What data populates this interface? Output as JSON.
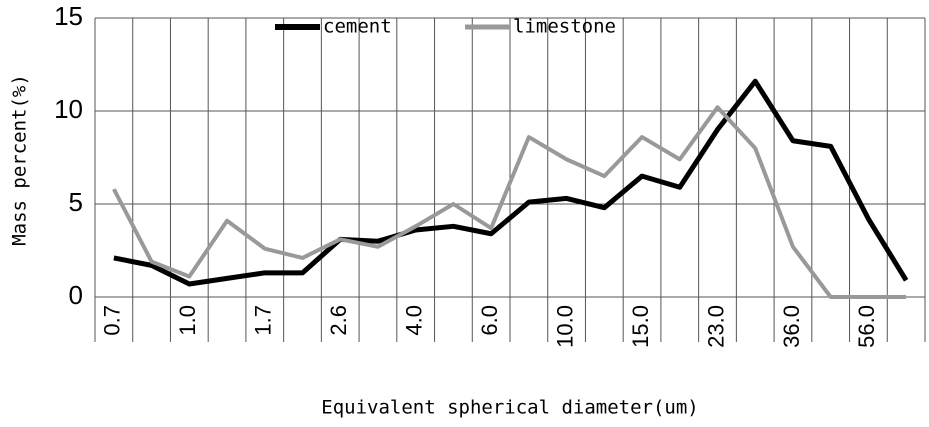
{
  "chart_data": {
    "type": "line",
    "x_label": "Equivalent spherical diameter(um)",
    "y_label": "Mass percent(%)",
    "categories": [
      "0.7",
      null,
      "1.0",
      null,
      "1.7",
      null,
      "2.6",
      null,
      "4.0",
      null,
      "6.0",
      null,
      "10.0",
      null,
      "15.0",
      null,
      "23.0",
      null,
      "36.0",
      null,
      "56.0",
      null
    ],
    "series": [
      {
        "name": "cement",
        "color": "#000000",
        "values": [
          2.1,
          1.7,
          0.7,
          1.0,
          1.3,
          1.3,
          3.1,
          3.0,
          3.6,
          3.8,
          3.4,
          5.1,
          5.3,
          4.8,
          6.5,
          5.9,
          9.0,
          11.6,
          8.4,
          8.1,
          4.2,
          0.9
        ]
      },
      {
        "name": "limestone",
        "color": "#999999",
        "values": [
          5.8,
          1.9,
          1.1,
          4.1,
          2.6,
          2.1,
          3.1,
          2.7,
          3.8,
          5.0,
          3.7,
          8.6,
          7.4,
          6.5,
          8.6,
          7.4,
          10.2,
          8.0,
          2.7,
          0,
          0,
          0
        ]
      }
    ],
    "ylim": [
      0,
      15
    ],
    "yticks": [
      0,
      5,
      10,
      15
    ],
    "grid": true,
    "legend": "top"
  }
}
